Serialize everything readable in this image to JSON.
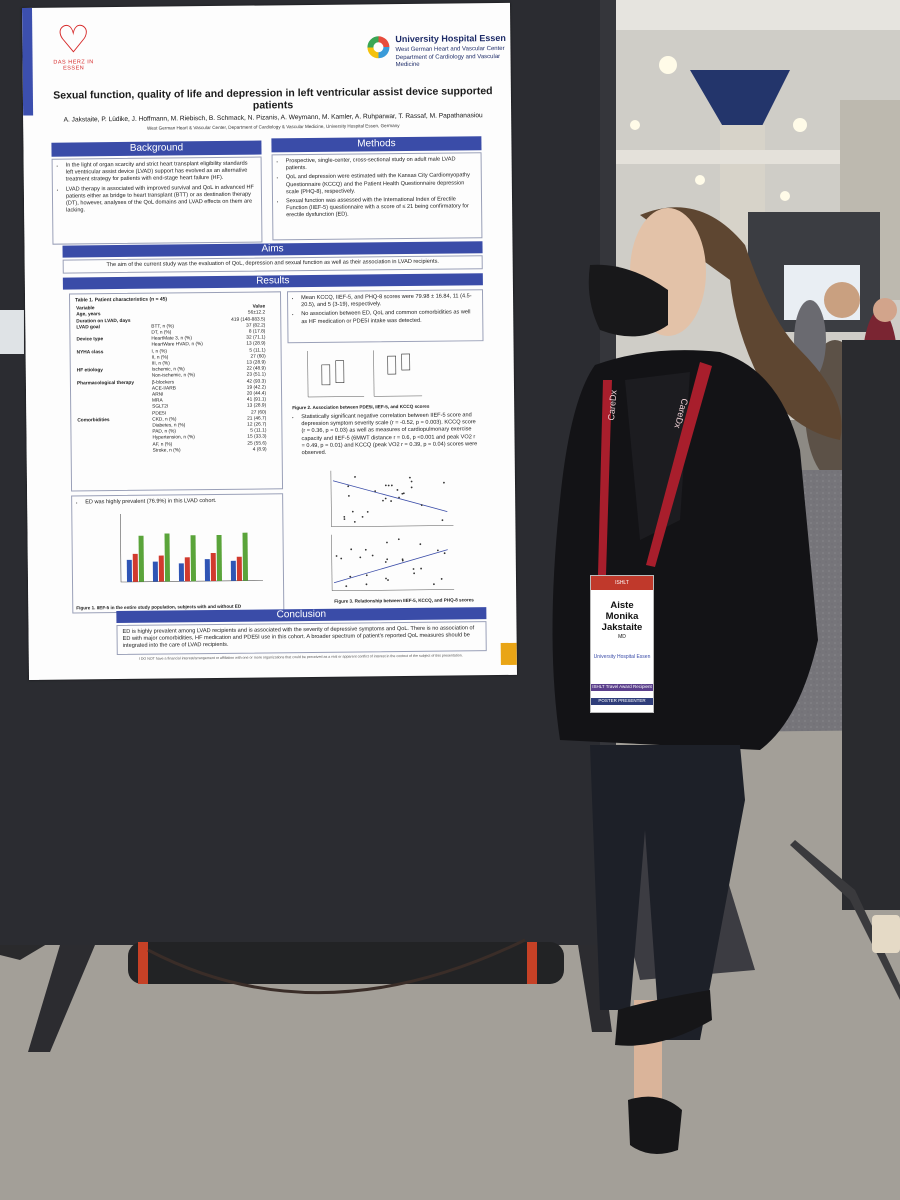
{
  "poster": {
    "logo_left_text": "DAS HERZ IN ESSEN",
    "hospital_name": "University Hospital Essen",
    "hospital_dept_1": "West German Heart and Vascular Center",
    "hospital_dept_2": "Department of Cardiology and Vascular Medicine",
    "title": "Sexual function, quality of life and depression in left ventricular assist device supported patients",
    "authors": "A. Jakstaite, P. Lüdike, J. Hoffmann, M. Riebisch, B. Schmack, N. Pizanis, A. Weymann, M. Kamler, A. Ruhparwar, T. Rassaf, M. Papathanasiou",
    "affiliation": "West German Heart & Vascular Center, Department of Cardiology & Vascular Medicine, University Hospital Essen, Germany",
    "background_heading": "Background",
    "background_points": [
      "In the light of organ scarcity and strict heart transplant eligibility standards left ventricular assist device (LVAD) support has evolved as an alternative treatment strategy for patients with end-stage heart failure (HF).",
      "LVAD therapy is associated with improved survival and QoL in advanced HF patients either as bridge to heart transplant (BTT) or as destination therapy (DT), however, analyses of the QoL domains and LVAD effects on them are lacking."
    ],
    "methods_heading": "Methods",
    "methods_points": [
      "Prospective, single-center, cross-sectional study on adult male LVAD patients.",
      "QoL and depression were estimated with the Kansas City Cardiomyopathy Questionnaire (KCCQ) and the Patient Health Questionnaire depression scale (PHQ-8), respectively.",
      "Sexual function was assessed with the International Index of Erectile Function (IIEF-5) questionnaire with a score of ≤ 21 being confirmatory for erectile dysfunction (ED)."
    ],
    "aims_heading": "Aims",
    "aims_text": "The aim of the current study was the evaluation of QoL, depression and sexual function as well as their association in LVAD recipients.",
    "results_heading": "Results",
    "table_title": "Table 1. Patient characteristics (n = 45)",
    "table_header": [
      "Variable",
      "Value"
    ],
    "table_rows": [
      [
        "Age, years",
        "",
        "56±12.2"
      ],
      [
        "Duration on LVAD, days",
        "",
        "419 (148-883.5)"
      ],
      [
        "LVAD goal",
        "BTT, n (%)",
        "37 (82.2)"
      ],
      [
        "",
        "DT, n (%)",
        "8 (17.8)"
      ],
      [
        "Device type",
        "HeartMate 3, n (%)",
        "32 (71.1)"
      ],
      [
        "",
        "HeartWare HVAD, n (%)",
        "13 (28.9)"
      ],
      [
        "NYHA class",
        "I, n (%)",
        "5 (11.1)"
      ],
      [
        "",
        "II, n (%)",
        "27 (60)"
      ],
      [
        "",
        "III, n (%)",
        "13 (28.9)"
      ],
      [
        "HF etiology",
        "Ischemic, n (%)",
        "22 (48.9)"
      ],
      [
        "",
        "Non-ischemic, n (%)",
        "23 (51.1)"
      ],
      [
        "Pharmacological therapy",
        "β-blockers",
        "42 (93.3)"
      ],
      [
        "",
        "ACE-I/ARB",
        "19 (42.2)"
      ],
      [
        "",
        "ARNI",
        "20 (44.4)"
      ],
      [
        "",
        "MRA",
        "41 (91.1)"
      ],
      [
        "",
        "SGLT2I",
        "13 (28.9)"
      ],
      [
        "",
        "PDE5I",
        "27 (60)"
      ],
      [
        "Comorbidities",
        "CKD, n (%)",
        "21 (46.7)"
      ],
      [
        "",
        "Diabetes, n (%)",
        "12 (26.7)"
      ],
      [
        "",
        "PAD, n (%)",
        "5 (11.1)"
      ],
      [
        "",
        "Hypertension, n (%)",
        "15 (33.3)"
      ],
      [
        "",
        "AF, n (%)",
        "25 (55.6)"
      ],
      [
        "",
        "Stroke, n (%)",
        "4 (8.9)"
      ]
    ],
    "ed_bullet": "ED was highly prevalent (76.9%) in this LVAD cohort.",
    "fig1_caption": "Figure 1. IIEF-5 in the entire study population, subjects with and without ED",
    "results_points_1": [
      "Mean KCCQ, IIEF-5, and PHQ-8 scores were 79.98 ± 16.84, 11 (4.5-20.5), and 5 (3-19), respectively.",
      "No association between ED, QoL and common comorbidities as well as HF medication or PDE5I intake was detected."
    ],
    "fig2_caption": "Figure 2. Association between PDE5I, IIEF-5, and KCCQ scores",
    "results_points_2": [
      "Statistically significant negative correlation between IIEF-5 score and depression symptom severity scale (r = -0.52, p = 0.003). KCCQ score (r = 0.36, p = 0.03) as well as measures of cardiopulmonary exercise capacity and IIEF-5 (6MWT distance r = 0.6, p <0.001 and peak VO2 r = 0.49, p = 0.01) and KCCQ (peak VO2 r = 0.39, p = 0.04) scores were observed."
    ],
    "fig3_caption": "Figure 3. Relationship between IIEF-5, KCCQ, and PHQ-8 scores",
    "conclusion_heading": "Conclusion",
    "conclusion_text": "ED is highly prevalent among LVAD recipients and is associated with the severity of depressive symptoms and QoL. There is no association of ED with major comorbidities, HF medication and PDE5I use in this cohort. A broader spectrum of patient's reported QoL measures should be integrated into the care of LVAD recipients.",
    "disclosure": "I DO NOT have a financial interest/arrangement or affiliation with one or more organizations that could be perceived as a real or apparent conflict of interest in the context of the subject of this presentation."
  },
  "badge": {
    "header": "ISHLT",
    "first_name": "Aiste",
    "middle_name": "Monika",
    "last_name": "Jakstaite",
    "degree": "MD",
    "org": "University Hospital Essen",
    "ribbon_1": "ISHLT Travel Award Recipient",
    "ribbon_2": "POSTER PRESENTER"
  },
  "lanyard_text": "CareDx",
  "colors": {
    "poster_band": "#3a4ca8",
    "logo_red": "#d62828",
    "badge_red": "#c0392b",
    "bar_blue": "#2f55b5",
    "bar_red": "#d13a2e",
    "bar_green": "#5aa43a"
  }
}
